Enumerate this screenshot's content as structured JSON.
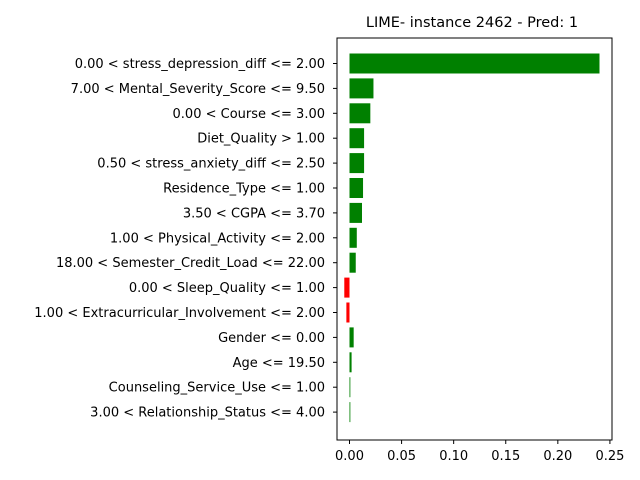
{
  "chart_data": {
    "type": "bar",
    "orientation": "horizontal",
    "title": "LIME- instance 2462 - Pred: 1",
    "xlabel": "",
    "ylabel": "",
    "xlim": [
      -0.012,
      0.252
    ],
    "xticks": [
      0.0,
      0.05,
      0.1,
      0.15,
      0.2,
      0.25
    ],
    "xtick_labels": [
      "0.00",
      "0.05",
      "0.10",
      "0.15",
      "0.20",
      "0.25"
    ],
    "grid": false,
    "colors": {
      "positive": "#008000",
      "negative": "#ff0000"
    },
    "categories": [
      "0.00 < stress_depression_diff <= 2.00",
      "7.00 < Mental_Severity_Score <= 9.50",
      "0.00 < Course <= 3.00",
      "Diet_Quality > 1.00",
      "0.50 < stress_anxiety_diff <= 2.50",
      "Residence_Type <= 1.00",
      "3.50 < CGPA <= 3.70",
      "1.00 < Physical_Activity <= 2.00",
      "18.00 < Semester_Credit_Load <= 22.00",
      "0.00 < Sleep_Quality <= 1.00",
      "1.00 < Extracurricular_Involvement <= 2.00",
      "Gender <= 0.00",
      "Age <= 19.50",
      "Counseling_Service_Use <= 1.00",
      "3.00 < Relationship_Status <= 4.00"
    ],
    "values": [
      0.24,
      0.023,
      0.02,
      0.014,
      0.014,
      0.013,
      0.012,
      0.007,
      0.006,
      -0.005,
      -0.003,
      0.004,
      0.002,
      0.0008,
      0.0008
    ]
  }
}
